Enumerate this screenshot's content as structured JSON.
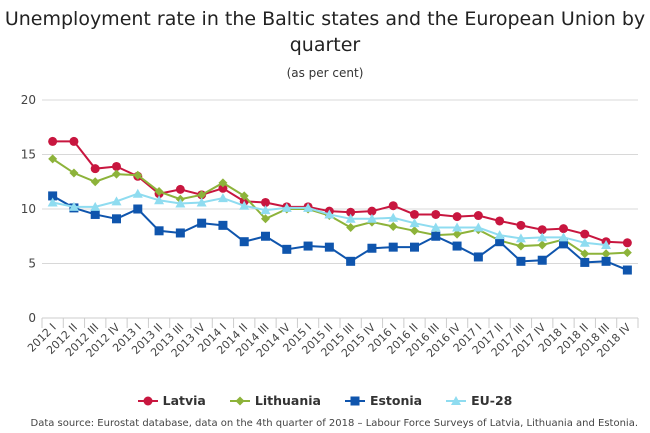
{
  "chart_data": {
    "type": "line",
    "title": "Unemployment rate in the Baltic states and the European Union by quarter",
    "subtitle": "(as per cent)",
    "xlabel": "",
    "ylabel": "",
    "ylim": [
      0,
      20
    ],
    "yticks": [
      "0",
      "5",
      "10",
      "15",
      "20"
    ],
    "yticks_values": [
      0,
      5,
      10,
      15,
      20
    ],
    "grid": true,
    "legend": "bottom",
    "categories": [
      "2012 I",
      "2012 II",
      "2012 III",
      "2012 IV",
      "2013 I",
      "2013 II",
      "2013 III",
      "2013 IV",
      "2014 I",
      "2014 II",
      "2014 III",
      "2014 IV",
      "2015 I",
      "2015 II",
      "2015 III",
      "2015 IV",
      "2016 I",
      "2016 II",
      "2016 III",
      "2016 IV",
      "2017 I",
      "2017 II",
      "2017 III",
      "2017 IV",
      "2018 I",
      "2018 II",
      "2018 III",
      "2018 IV"
    ],
    "series": [
      {
        "name": "Latvia",
        "color": "#c8163f",
        "marker": "circle",
        "values": [
          16.2,
          16.2,
          13.7,
          13.9,
          13.0,
          11.4,
          11.8,
          11.3,
          11.9,
          10.7,
          10.6,
          10.2,
          10.2,
          9.8,
          9.7,
          9.8,
          10.3,
          9.5,
          9.5,
          9.3,
          9.4,
          8.9,
          8.5,
          8.1,
          8.2,
          7.7,
          7.0,
          6.9
        ]
      },
      {
        "name": "Lithuania",
        "color": "#8db33a",
        "marker": "diamond",
        "values": [
          14.6,
          13.3,
          12.5,
          13.2,
          13.1,
          11.6,
          10.9,
          11.3,
          12.4,
          11.2,
          9.1,
          10.0,
          10.0,
          9.4,
          8.3,
          8.8,
          8.4,
          8.0,
          7.6,
          7.7,
          8.1,
          7.1,
          6.6,
          6.7,
          7.2,
          5.9,
          5.9,
          6.0
        ]
      },
      {
        "name": "Estonia",
        "color": "#0f55ad",
        "marker": "square",
        "values": [
          11.2,
          10.1,
          9.5,
          9.1,
          10.0,
          8.0,
          7.8,
          8.7,
          8.5,
          7.0,
          7.5,
          6.3,
          6.6,
          6.5,
          5.2,
          6.4,
          6.5,
          6.5,
          7.5,
          6.6,
          5.6,
          7.0,
          5.2,
          5.3,
          6.8,
          5.1,
          5.2,
          4.4
        ]
      },
      {
        "name": "EU-28",
        "color": "#8fdcf0",
        "marker": "triangle",
        "values": [
          10.6,
          10.2,
          10.2,
          10.7,
          11.4,
          10.8,
          10.5,
          10.6,
          11.0,
          10.3,
          9.9,
          10.1,
          10.1,
          9.5,
          9.1,
          9.1,
          9.2,
          8.7,
          8.3,
          8.3,
          8.3,
          7.6,
          7.3,
          7.4,
          7.4,
          6.9,
          6.7,
          null
        ]
      }
    ]
  },
  "source": "Data source: Eurostat database, data on the 4th quarter of 2018 – Labour Force Surveys of Latvia, Lithuania and Estonia."
}
